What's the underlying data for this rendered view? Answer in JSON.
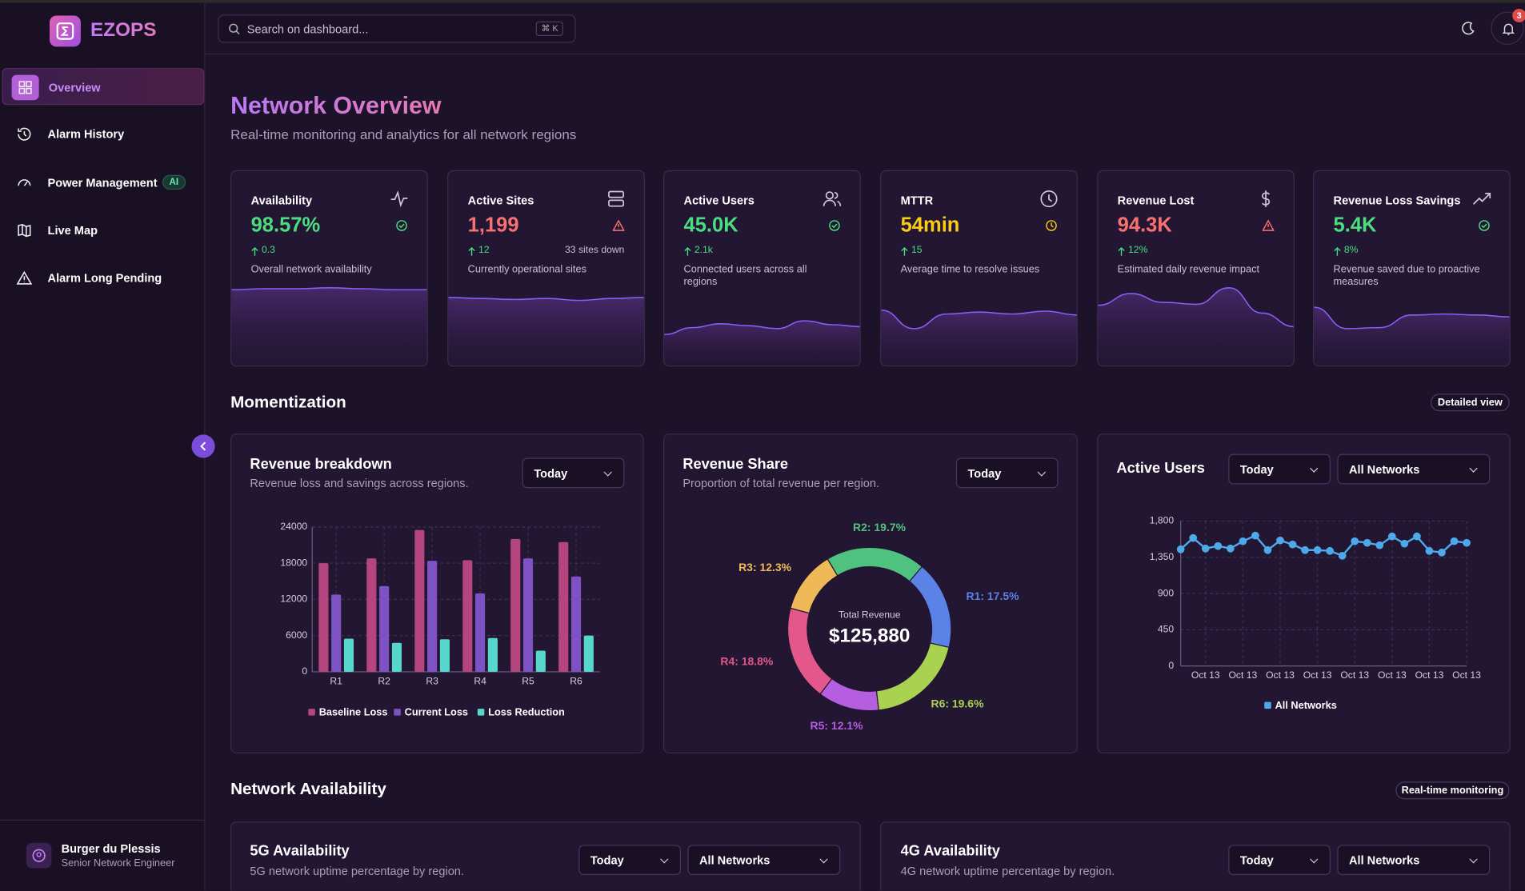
{
  "brand": "EZOPS",
  "search": {
    "placeholder": "Search on dashboard...",
    "shortcut": "⌘ K"
  },
  "notifications": 3,
  "sidebar": {
    "items": [
      {
        "label": "Overview"
      },
      {
        "label": "Alarm History"
      },
      {
        "label": "Power Management",
        "badge": "AI"
      },
      {
        "label": "Live Map"
      },
      {
        "label": "Alarm Long Pending"
      }
    ]
  },
  "user": {
    "name": "Burger du Plessis",
    "role": "Senior Network Engineer"
  },
  "header": {
    "title": "Network Overview",
    "subtitle": "Real-time monitoring and analytics for all network regions"
  },
  "kpis": [
    {
      "label": "Availability",
      "value": "98.57%",
      "delta": "0.3",
      "desc": "Overall network availability",
      "color": "#4ade80"
    },
    {
      "label": "Active Sites",
      "value": "1,199",
      "delta": "12",
      "extra": "33 sites down",
      "desc": "Currently operational sites",
      "color": "#f87171"
    },
    {
      "label": "Active Users",
      "value": "45.0K",
      "delta": "2.1k",
      "desc": "Connected users across all regions",
      "color": "#4ade80"
    },
    {
      "label": "MTTR",
      "value": "54min",
      "delta": "15",
      "desc": "Average time to resolve issues",
      "color": "#facc15"
    },
    {
      "label": "Revenue Lost",
      "value": "94.3K",
      "delta": "12%",
      "desc": "Estimated daily revenue impact",
      "color": "#f87171"
    },
    {
      "label": "Revenue Loss Savings",
      "value": "5.4K",
      "delta": "8%",
      "desc": "Revenue saved due to proactive measures",
      "color": "#4ade80"
    }
  ],
  "sections": {
    "momentization": {
      "title": "Momentization",
      "action": "Detailed view"
    },
    "availability": {
      "title": "Network Availability",
      "action": "Real-time monitoring"
    }
  },
  "chart_data": [
    {
      "type": "bar",
      "title": "Revenue breakdown",
      "subtitle": "Revenue loss and savings across regions.",
      "filters": [
        "Today"
      ],
      "categories": [
        "R1",
        "R2",
        "R3",
        "R4",
        "R5",
        "R6"
      ],
      "series": [
        {
          "name": "Baseline Loss",
          "color": "#b5457f",
          "values": [
            18000,
            18800,
            23500,
            18500,
            22000,
            21500
          ]
        },
        {
          "name": "Current Loss",
          "color": "#7d52c4",
          "values": [
            12800,
            14200,
            18400,
            13000,
            18800,
            15800
          ]
        },
        {
          "name": "Loss Reduction",
          "color": "#56d6cc",
          "values": [
            5500,
            4800,
            5400,
            5600,
            3500,
            6000
          ]
        }
      ],
      "ylim": [
        0,
        24000
      ],
      "yticks": [
        0,
        6000,
        12000,
        18000,
        24000
      ],
      "grid": true
    },
    {
      "type": "donut",
      "title": "Revenue Share",
      "subtitle": "Proportion of total revenue per region.",
      "filters": [
        "Today"
      ],
      "categories": [
        "R1",
        "R6",
        "R5",
        "R4",
        "R3",
        "R2"
      ],
      "values": [
        17.5,
        19.6,
        12.1,
        18.8,
        12.3,
        19.7
      ],
      "value_labels": [
        "R1: 17.5%",
        "R6: 19.6%",
        "R5: 12.1%",
        "R4: 18.8%",
        "R3: 12.3%",
        "R2: 19.7%"
      ],
      "colors": [
        "#5b82e6",
        "#a8d24f",
        "#b55fe0",
        "#e3578a",
        "#f0b957",
        "#4fc27f"
      ],
      "center_label": "Total Revenue",
      "center_value": "$125,880"
    },
    {
      "type": "line",
      "title": "Active Users",
      "filters": [
        "Today",
        "All Networks"
      ],
      "categories": [
        null,
        null,
        "Oct 13",
        null,
        null,
        "Oct 13",
        null,
        null,
        "Oct 13",
        null,
        null,
        "Oct 13",
        null,
        null,
        "Oct 13",
        null,
        null,
        "Oct 13",
        null,
        null,
        "Oct 13",
        null,
        null,
        "Oct 13"
      ],
      "series": [
        {
          "name": "All Networks",
          "color": "#4da9ea",
          "values": [
            1450,
            1590,
            1460,
            1490,
            1460,
            1550,
            1620,
            1440,
            1560,
            1510,
            1440,
            1440,
            1430,
            1370,
            1550,
            1530,
            1500,
            1610,
            1520,
            1610,
            1430,
            1410,
            1550,
            1530
          ]
        }
      ],
      "ylim": [
        0,
        1800
      ],
      "yticks": [
        0,
        450,
        900,
        {
          "value": 1350,
          "label": "1,350"
        },
        {
          "value": 1800,
          "label": "1,800"
        }
      ],
      "grid": true
    }
  ],
  "availability_cards": [
    {
      "title": "5G Availability",
      "subtitle": "5G network uptime percentage by region.",
      "filters": [
        "Today",
        "All Networks"
      ]
    },
    {
      "title": "4G Availability",
      "subtitle": "4G network uptime percentage by region.",
      "filters": [
        "Today",
        "All Networks"
      ]
    }
  ]
}
